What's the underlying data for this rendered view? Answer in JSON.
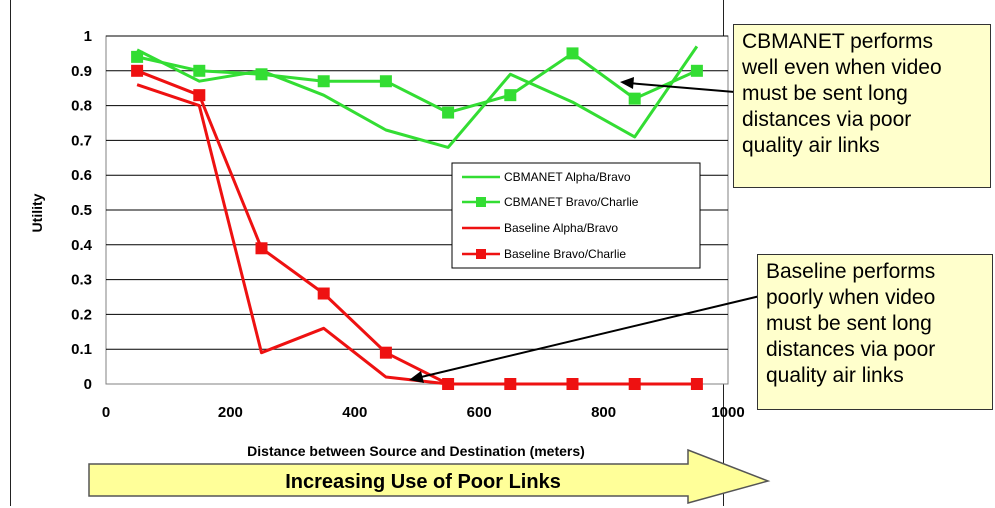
{
  "chart_data": {
    "type": "line",
    "xlabel": "Distance between Source and Destination (meters)",
    "ylabel": "Utility",
    "xlim": [
      0,
      1000
    ],
    "ylim": [
      0,
      1
    ],
    "x_ticks": [
      "0",
      "200",
      "400",
      "600",
      "800",
      "1000"
    ],
    "y_ticks": [
      "0",
      "0.1",
      "0.2",
      "0.3",
      "0.4",
      "0.5",
      "0.6",
      "0.7",
      "0.8",
      "0.9",
      "1"
    ],
    "grid": "horizontal",
    "legend_position": "center-right",
    "series": [
      {
        "name": "CBMANET Alpha/Bravo",
        "color": "#33dd33",
        "marker": "none",
        "x": [
          50,
          150,
          250,
          350,
          450,
          550,
          650,
          750,
          850,
          950
        ],
        "y": [
          0.96,
          0.87,
          0.9,
          0.83,
          0.73,
          0.68,
          0.89,
          0.81,
          0.71,
          0.97
        ]
      },
      {
        "name": "CBMANET Bravo/Charlie",
        "color": "#33dd33",
        "marker": "square",
        "x": [
          50,
          150,
          250,
          350,
          450,
          550,
          650,
          750,
          850,
          950
        ],
        "y": [
          0.94,
          0.9,
          0.89,
          0.87,
          0.87,
          0.78,
          0.83,
          0.95,
          0.82,
          0.9
        ]
      },
      {
        "name": "Baseline Alpha/Bravo",
        "color": "#ee1111",
        "marker": "none",
        "x": [
          50,
          150,
          250,
          350,
          450,
          550,
          650,
          750,
          850,
          950
        ],
        "y": [
          0.86,
          0.8,
          0.09,
          0.16,
          0.02,
          0,
          0,
          0,
          0,
          0
        ]
      },
      {
        "name": "Baseline Bravo/Charlie",
        "color": "#ee1111",
        "marker": "square",
        "x": [
          50,
          150,
          250,
          350,
          450,
          550,
          650,
          750,
          850,
          950
        ],
        "y": [
          0.9,
          0.83,
          0.39,
          0.26,
          0.09,
          0,
          0,
          0,
          0,
          0
        ]
      }
    ],
    "annotations": [
      {
        "text": [
          "CBMANET performs",
          "well even when video",
          "must be sent long",
          "distances via poor",
          "quality air links"
        ],
        "points_to": [
          820,
          0.86
        ]
      },
      {
        "text": [
          "Baseline performs",
          "poorly when video",
          "must be sent long",
          "distances via poor",
          "quality air links"
        ],
        "points_to": [
          500,
          0.01
        ]
      }
    ],
    "banner": "Increasing Use of Poor Links"
  },
  "colors": {
    "banner_fill": "#ffff99",
    "callout_fill": "#ffffcc",
    "gridline": "#000000"
  }
}
